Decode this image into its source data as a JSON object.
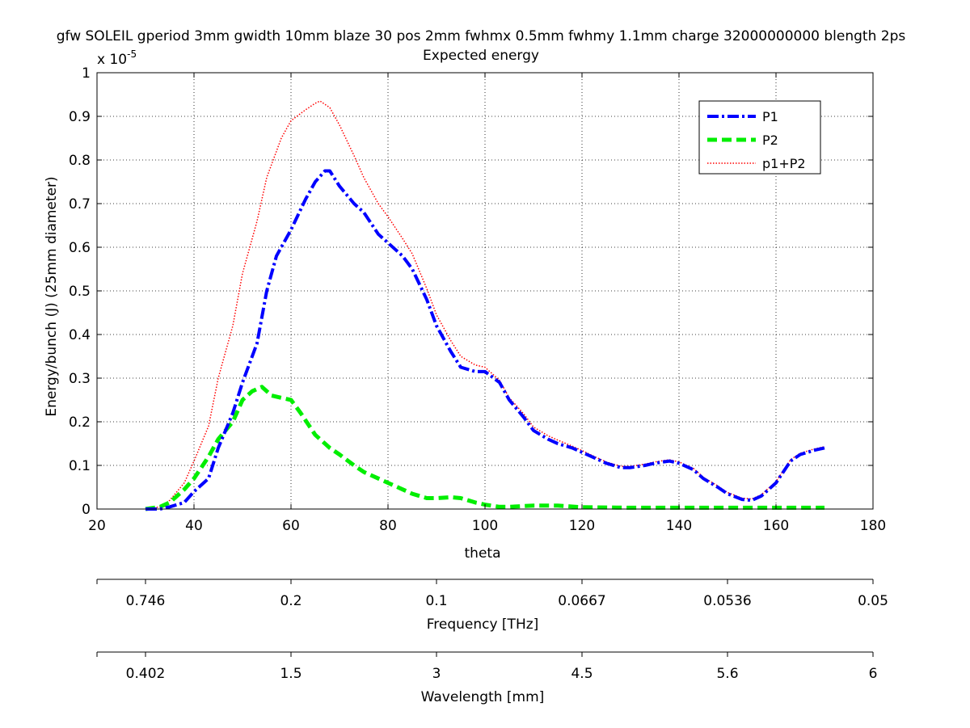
{
  "chart_data": {
    "type": "line",
    "title": "gfw SOLEIL gperiod 3mm gwidth 10mm blaze 30 pos 2mm fwhmx 0.5mm fwhmy 1.1mm charge 32000000000 blength 2ps",
    "subtitle": "Expected energy",
    "xlabel": "theta",
    "ylabel": "Energy/bunch (J) (25mm diameter)",
    "y_exponent_label": "x 10",
    "y_exponent": "-5",
    "xlim": [
      20,
      180
    ],
    "ylim": [
      0,
      1
    ],
    "x_ticks": [
      "20",
      "40",
      "60",
      "80",
      "100",
      "120",
      "140",
      "160",
      "180"
    ],
    "y_ticks": [
      "0",
      "0.1",
      "0.2",
      "0.3",
      "0.4",
      "0.5",
      "0.6",
      "0.7",
      "0.8",
      "0.9",
      "1"
    ],
    "grid": true,
    "legend_position": "top-right",
    "series": [
      {
        "name": "P1",
        "color": "#0000ff",
        "style": "dash-dot",
        "x": [
          30,
          33,
          35,
          38,
          40,
          43,
          45,
          48,
          50,
          53,
          55,
          57,
          60,
          63,
          65,
          67,
          68,
          70,
          73,
          75,
          78,
          80,
          83,
          85,
          88,
          90,
          93,
          95,
          98,
          100,
          103,
          105,
          108,
          110,
          113,
          115,
          118,
          120,
          123,
          125,
          128,
          130,
          133,
          135,
          138,
          140,
          143,
          145,
          148,
          150,
          153,
          155,
          157,
          160,
          163,
          165,
          168,
          170
        ],
        "y": [
          0.0,
          0.0,
          0.005,
          0.015,
          0.04,
          0.07,
          0.14,
          0.22,
          0.29,
          0.38,
          0.5,
          0.58,
          0.64,
          0.71,
          0.75,
          0.775,
          0.775,
          0.74,
          0.7,
          0.68,
          0.63,
          0.61,
          0.58,
          0.55,
          0.48,
          0.42,
          0.36,
          0.325,
          0.315,
          0.315,
          0.29,
          0.25,
          0.21,
          0.18,
          0.16,
          0.15,
          0.14,
          0.13,
          0.115,
          0.105,
          0.095,
          0.095,
          0.1,
          0.105,
          0.11,
          0.105,
          0.09,
          0.07,
          0.05,
          0.035,
          0.022,
          0.02,
          0.03,
          0.06,
          0.11,
          0.125,
          0.135,
          0.14
        ]
      },
      {
        "name": "P2",
        "color": "#00ee00",
        "style": "dashed",
        "x": [
          30,
          33,
          35,
          38,
          40,
          43,
          45,
          48,
          50,
          52,
          54,
          56,
          58,
          60,
          62,
          65,
          68,
          70,
          73,
          75,
          78,
          80,
          83,
          85,
          88,
          90,
          93,
          95,
          98,
          100,
          103,
          105,
          110,
          115,
          120,
          130,
          140,
          150,
          160,
          170
        ],
        "y": [
          0.0,
          0.005,
          0.015,
          0.045,
          0.07,
          0.12,
          0.16,
          0.2,
          0.25,
          0.27,
          0.28,
          0.26,
          0.255,
          0.25,
          0.22,
          0.17,
          0.14,
          0.125,
          0.1,
          0.085,
          0.07,
          0.06,
          0.045,
          0.035,
          0.025,
          0.025,
          0.027,
          0.025,
          0.015,
          0.01,
          0.005,
          0.005,
          0.008,
          0.008,
          0.004,
          0.003,
          0.003,
          0.003,
          0.003,
          0.003
        ]
      },
      {
        "name": "p1+P2",
        "color": "#ff0000",
        "style": "dotted",
        "x": [
          30,
          33,
          35,
          38,
          40,
          43,
          45,
          48,
          50,
          53,
          55,
          58,
          60,
          63,
          65,
          66,
          68,
          70,
          73,
          75,
          78,
          80,
          83,
          85,
          88,
          90,
          93,
          95,
          98,
          100,
          103,
          105,
          108,
          110,
          113,
          115,
          118,
          120,
          123,
          125,
          128,
          130,
          133,
          135,
          138,
          140,
          143,
          145,
          148,
          150,
          153,
          155,
          157,
          160,
          163,
          165,
          168,
          170
        ],
        "y": [
          0.0,
          0.005,
          0.02,
          0.06,
          0.11,
          0.19,
          0.3,
          0.42,
          0.54,
          0.66,
          0.76,
          0.85,
          0.89,
          0.915,
          0.93,
          0.935,
          0.92,
          0.88,
          0.81,
          0.76,
          0.7,
          0.67,
          0.62,
          0.585,
          0.505,
          0.445,
          0.385,
          0.35,
          0.33,
          0.325,
          0.295,
          0.255,
          0.218,
          0.188,
          0.168,
          0.158,
          0.144,
          0.134,
          0.118,
          0.108,
          0.098,
          0.098,
          0.103,
          0.108,
          0.113,
          0.108,
          0.093,
          0.073,
          0.053,
          0.038,
          0.025,
          0.023,
          0.033,
          0.063,
          0.113,
          0.128,
          0.138,
          0.143
        ]
      }
    ],
    "secondary_axes": [
      {
        "label": "Frequency [THz]",
        "tick_labels": [
          "0.746",
          "0.2",
          "0.1",
          "0.0667",
          "0.0536",
          "0.05"
        ]
      },
      {
        "label": "Wavelength [mm]",
        "tick_labels": [
          "0.402",
          "1.5",
          "3",
          "4.5",
          "5.6",
          "6"
        ]
      }
    ]
  }
}
